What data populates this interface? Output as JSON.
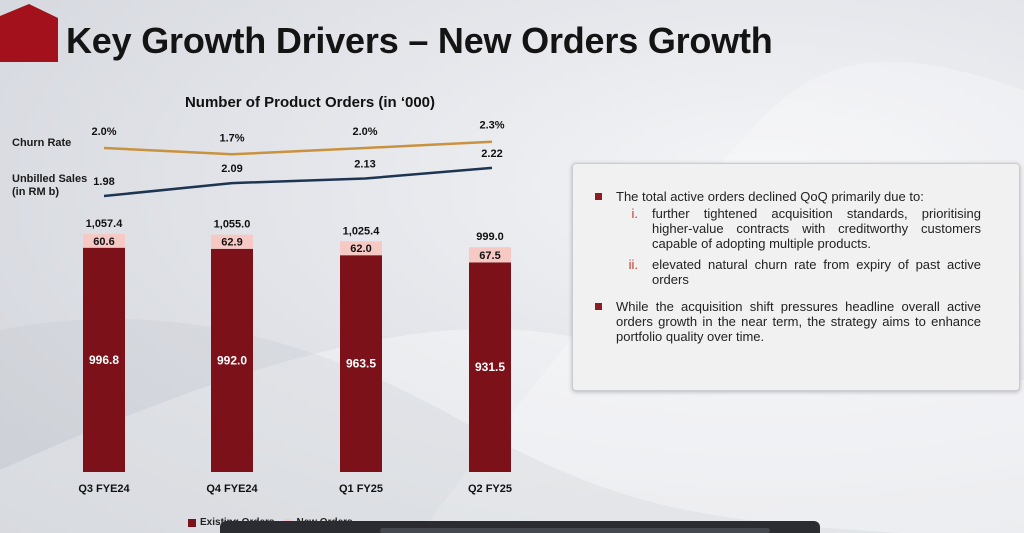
{
  "slide": {
    "title": "Key Growth Drivers – New Orders Growth"
  },
  "side_labels": {
    "churn": "Churn Rate",
    "unbilled_line1": "Unbilled Sales",
    "unbilled_line2": "(in RM b)"
  },
  "chart_data": {
    "type": "bar",
    "stacked": true,
    "title": "Number of Product Orders  (in ‘000)",
    "categories": [
      "Q3 FYE24",
      "Q4 FYE24",
      "Q1 FY25",
      "Q2 FY25"
    ],
    "series": [
      {
        "name": "Existing Orders",
        "values": [
          996.8,
          992.0,
          963.5,
          931.5
        ],
        "labels": [
          "996.8",
          "992.0",
          "963.5",
          "931.5"
        ],
        "color": "#7c1119"
      },
      {
        "name": "New Orders",
        "values": [
          60.6,
          62.9,
          62.0,
          67.5
        ],
        "labels": [
          "60.6",
          "62.9",
          "62.0",
          "67.5"
        ],
        "color": "#f6c9c4"
      }
    ],
    "totals": [
      "1,057.4",
      "1,055.0",
      "1,025.4",
      "999.0"
    ],
    "ylim": [
      0,
      1100
    ],
    "lines": [
      {
        "name": "Churn Rate",
        "values": [
          2.0,
          1.7,
          2.0,
          2.3
        ],
        "labels": [
          "2.0%",
          "1.7%",
          "2.0%",
          "2.3%"
        ],
        "color": "#c9923f"
      },
      {
        "name": "Unbilled Sales (in RM b)",
        "values": [
          1.98,
          2.09,
          2.13,
          2.22
        ],
        "labels": [
          "1.98",
          "2.09",
          "2.13",
          "2.22"
        ],
        "color": "#1e3552"
      }
    ],
    "legend": {
      "position": "bottom-left",
      "labels": [
        "Existing Orders",
        "New Orders"
      ]
    }
  },
  "panel": {
    "bullets": [
      {
        "text": "The total active orders declined QoQ  primarily due to:",
        "sub": [
          {
            "num": "i.",
            "text": "further tightened acquisition standards, prioritising higher-value contracts with creditworthy customers capable of adopting multiple products."
          },
          {
            "num": "ii.",
            "text": "elevated natural churn rate from expiry of past active orders"
          }
        ]
      },
      {
        "text": "While the acquisition shift pressures headline overall active orders growth in the near term, the strategy aims to enhance portfolio quality over time.",
        "sub": []
      }
    ]
  },
  "colors": {
    "accent": "#8c1d25",
    "logo": "#a3121c"
  }
}
